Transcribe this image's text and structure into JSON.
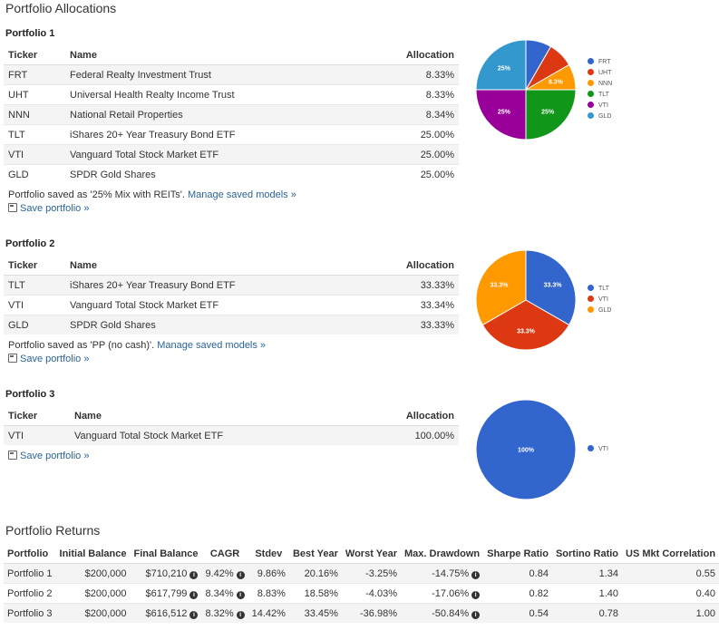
{
  "page": {
    "title": "Portfolio Allocations",
    "returns_title": "Portfolio Returns"
  },
  "columns": {
    "ticker": "Ticker",
    "name": "Name",
    "allocation": "Allocation"
  },
  "portfolios": [
    {
      "title": "Portfolio 1",
      "holdings": [
        {
          "ticker": "FRT",
          "name": "Federal Realty Investment Trust",
          "allocation": "8.33%"
        },
        {
          "ticker": "UHT",
          "name": "Universal Health Realty Income Trust",
          "allocation": "8.33%"
        },
        {
          "ticker": "NNN",
          "name": "National Retail Properties",
          "allocation": "8.34%"
        },
        {
          "ticker": "TLT",
          "name": "iShares 20+ Year Treasury Bond ETF",
          "allocation": "25.00%"
        },
        {
          "ticker": "VTI",
          "name": "Vanguard Total Stock Market ETF",
          "allocation": "25.00%"
        },
        {
          "ticker": "GLD",
          "name": "SPDR Gold Shares",
          "allocation": "25.00%"
        }
      ],
      "saved_prefix": "Portfolio saved as '25% Mix with REITs'. ",
      "manage_label": "Manage saved models »",
      "save_label": "Save portfolio »"
    },
    {
      "title": "Portfolio 2",
      "holdings": [
        {
          "ticker": "TLT",
          "name": "iShares 20+ Year Treasury Bond ETF",
          "allocation": "33.33%"
        },
        {
          "ticker": "VTI",
          "name": "Vanguard Total Stock Market ETF",
          "allocation": "33.34%"
        },
        {
          "ticker": "GLD",
          "name": "SPDR Gold Shares",
          "allocation": "33.33%"
        }
      ],
      "saved_prefix": "Portfolio saved as 'PP (no cash)'. ",
      "manage_label": "Manage saved models »",
      "save_label": "Save portfolio »"
    },
    {
      "title": "Portfolio 3",
      "holdings": [
        {
          "ticker": "VTI",
          "name": "Vanguard Total Stock Market ETF",
          "allocation": "100.00%"
        }
      ],
      "save_label": "Save portfolio »"
    }
  ],
  "chart_data": [
    {
      "type": "pie",
      "categories": [
        "FRT",
        "UHT",
        "NNN",
        "TLT",
        "VTI",
        "GLD"
      ],
      "values": [
        8.33,
        8.33,
        8.34,
        25.0,
        25.0,
        25.0
      ],
      "slice_labels": [
        "",
        "",
        "8.3%",
        "25%",
        "25%",
        "25%"
      ],
      "colors": [
        "#3366cc",
        "#dc3912",
        "#ff9900",
        "#109618",
        "#990099",
        "#3399cc"
      ],
      "legend": "right"
    },
    {
      "type": "pie",
      "categories": [
        "TLT",
        "VTI",
        "GLD"
      ],
      "values": [
        33.33,
        33.34,
        33.33
      ],
      "slice_labels": [
        "33.3%",
        "33.3%",
        "33.3%"
      ],
      "colors": [
        "#3366cc",
        "#dc3912",
        "#ff9900"
      ],
      "legend": "right"
    },
    {
      "type": "pie",
      "categories": [
        "VTI"
      ],
      "values": [
        100
      ],
      "slice_labels": [
        "100%"
      ],
      "colors": [
        "#3366cc"
      ],
      "legend": "right"
    }
  ],
  "returns": {
    "headers": [
      "Portfolio",
      "Initial Balance",
      "Final Balance",
      "CAGR",
      "Stdev",
      "Best Year",
      "Worst Year",
      "Max. Drawdown",
      "Sharpe Ratio",
      "Sortino Ratio",
      "US Mkt Correlation"
    ],
    "rows": [
      {
        "portfolio": "Portfolio 1",
        "initial": "$200,000",
        "final": "$710,210",
        "cagr": "9.42%",
        "stdev": "9.86%",
        "best": "20.16%",
        "worst": "-3.25%",
        "drawdown": "-14.75%",
        "sharpe": "0.84",
        "sortino": "1.34",
        "corr": "0.55"
      },
      {
        "portfolio": "Portfolio 2",
        "initial": "$200,000",
        "final": "$617,799",
        "cagr": "8.34%",
        "stdev": "8.83%",
        "best": "18.58%",
        "worst": "-4.03%",
        "drawdown": "-17.06%",
        "sharpe": "0.82",
        "sortino": "1.40",
        "corr": "0.40"
      },
      {
        "portfolio": "Portfolio 3",
        "initial": "$200,000",
        "final": "$616,512",
        "cagr": "8.32%",
        "stdev": "14.42%",
        "best": "33.45%",
        "worst": "-36.98%",
        "drawdown": "-50.84%",
        "sharpe": "0.54",
        "sortino": "0.78",
        "corr": "1.00"
      }
    ]
  }
}
